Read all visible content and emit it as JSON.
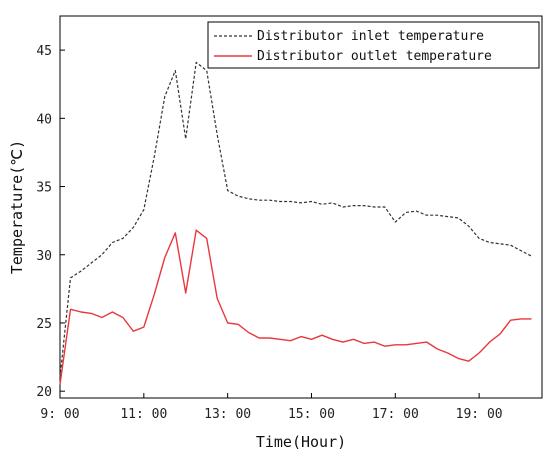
{
  "chart_data": {
    "type": "line",
    "title": "",
    "xlabel": "Time(Hour)",
    "ylabel": "Temperature(℃)",
    "x_unit": "hour",
    "xlim": [
      9.0,
      20.5
    ],
    "ylim": [
      19.5,
      47.5
    ],
    "x_ticks": [
      9,
      11,
      13,
      15,
      17,
      19
    ],
    "x_tick_labels": [
      "9: 00",
      "11: 00",
      "13: 00",
      "15: 00",
      "17: 00",
      "19: 00"
    ],
    "y_ticks": [
      20,
      25,
      30,
      35,
      40,
      45
    ],
    "y_tick_labels": [
      "20",
      "25",
      "30",
      "35",
      "40",
      "45"
    ],
    "grid": false,
    "legend_position": "top-right",
    "series": [
      {
        "name": "Distributor inlet temperature",
        "style": "dashed",
        "color": "#333333",
        "x": [
          9.0,
          9.25,
          9.5,
          9.75,
          10.0,
          10.25,
          10.5,
          10.75,
          11.0,
          11.25,
          11.5,
          11.75,
          12.0,
          12.25,
          12.5,
          12.75,
          13.0,
          13.25,
          13.5,
          13.75,
          14.0,
          14.25,
          14.5,
          14.75,
          15.0,
          15.25,
          15.5,
          15.75,
          16.0,
          16.25,
          16.5,
          16.75,
          17.0,
          17.25,
          17.5,
          17.75,
          18.0,
          18.25,
          18.5,
          18.75,
          19.0,
          19.25,
          19.5,
          19.75,
          20.0,
          20.25
        ],
        "y": [
          21.0,
          28.3,
          28.8,
          29.4,
          30.0,
          30.9,
          31.2,
          32.0,
          33.3,
          37.2,
          41.6,
          43.5,
          38.5,
          44.1,
          43.5,
          38.8,
          34.7,
          34.3,
          34.1,
          34.0,
          34.0,
          33.9,
          33.9,
          33.8,
          33.9,
          33.7,
          33.8,
          33.5,
          33.6,
          33.6,
          33.5,
          33.5,
          32.4,
          33.1,
          33.2,
          32.9,
          32.9,
          32.8,
          32.7,
          32.1,
          31.2,
          30.9,
          30.8,
          30.7,
          30.3,
          29.9
        ]
      },
      {
        "name": "Distributor outlet temperature",
        "style": "solid",
        "color": "#e8383d",
        "x": [
          9.0,
          9.25,
          9.5,
          9.75,
          10.0,
          10.25,
          10.5,
          10.75,
          11.0,
          11.25,
          11.5,
          11.75,
          12.0,
          12.25,
          12.5,
          12.75,
          13.0,
          13.25,
          13.5,
          13.75,
          14.0,
          14.25,
          14.5,
          14.75,
          15.0,
          15.25,
          15.5,
          15.75,
          16.0,
          16.25,
          16.5,
          16.75,
          17.0,
          17.25,
          17.5,
          17.75,
          18.0,
          18.25,
          18.5,
          18.75,
          19.0,
          19.25,
          19.5,
          19.75,
          20.0,
          20.25
        ],
        "y": [
          20.5,
          26.0,
          25.8,
          25.7,
          25.4,
          25.8,
          25.4,
          24.4,
          24.7,
          27.1,
          29.8,
          31.6,
          27.2,
          31.8,
          31.2,
          26.8,
          25.0,
          24.9,
          24.3,
          23.9,
          23.9,
          23.8,
          23.7,
          24.0,
          23.8,
          24.1,
          23.8,
          23.6,
          23.8,
          23.5,
          23.6,
          23.3,
          23.4,
          23.4,
          23.5,
          23.6,
          23.1,
          22.8,
          22.4,
          22.2,
          22.8,
          23.6,
          24.2,
          25.2,
          25.3,
          25.3
        ]
      }
    ]
  }
}
